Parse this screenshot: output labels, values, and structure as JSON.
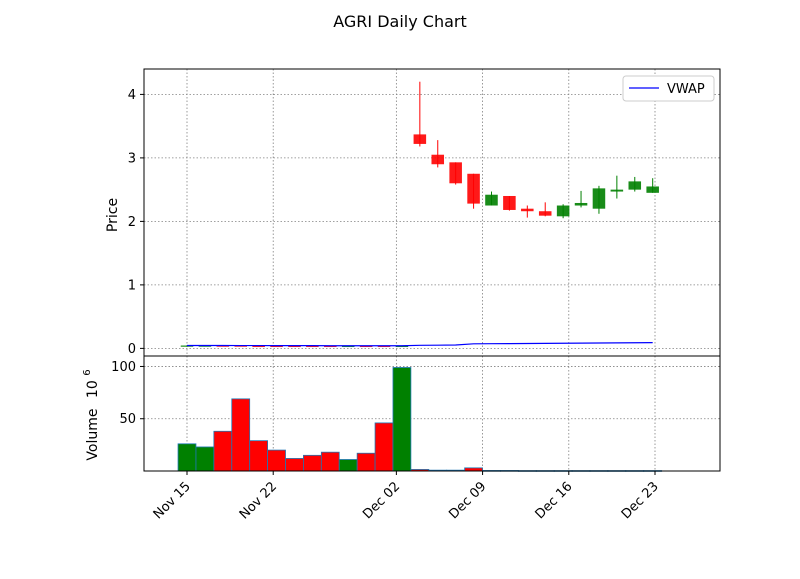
{
  "chart_data": {
    "type": "candlestick",
    "title": "AGRI Daily Chart",
    "colors": {
      "up": "#008000",
      "down": "#ff0000",
      "vwap": "#0000ff",
      "edge": "#1f77b4",
      "grid": "#808080"
    },
    "legend": {
      "entries": [
        "VWAP"
      ],
      "placement": "top-right"
    },
    "x_tick_labels": [
      "Nov 15",
      "Nov 22",
      "Dec 02",
      "Dec 09",
      "Dec 16",
      "Dec 23"
    ],
    "price_panel": {
      "ylabel": "Price",
      "ylim": [
        -0.12,
        4.4
      ],
      "yticks": [
        "0",
        "1",
        "2",
        "3",
        "4"
      ],
      "grid": true
    },
    "volume_panel": {
      "ylabel": "Volume",
      "ylabel_exponent": "10",
      "ylabel_exponent_power": "6",
      "ylim": [
        0,
        110
      ],
      "yticks": [
        "50",
        "100"
      ],
      "grid": true
    },
    "candles": [
      {
        "date": "2021-11-15",
        "open": 0.045,
        "high": 0.05,
        "low": 0.04,
        "close": 0.045,
        "volume": 26
      },
      {
        "date": "2021-11-16",
        "open": 0.04,
        "high": 0.045,
        "low": 0.035,
        "close": 0.045,
        "volume": 23
      },
      {
        "date": "2021-11-17",
        "open": 0.045,
        "high": 0.05,
        "low": 0.04,
        "close": 0.04,
        "volume": 38
      },
      {
        "date": "2021-11-18",
        "open": 0.045,
        "high": 0.05,
        "low": 0.04,
        "close": 0.04,
        "volume": 69
      },
      {
        "date": "2021-11-19",
        "open": 0.04,
        "high": 0.045,
        "low": 0.035,
        "close": 0.035,
        "volume": 29
      },
      {
        "date": "2021-11-22",
        "open": 0.04,
        "high": 0.045,
        "low": 0.035,
        "close": 0.035,
        "volume": 20
      },
      {
        "date": "2021-11-23",
        "open": 0.04,
        "high": 0.045,
        "low": 0.035,
        "close": 0.035,
        "volume": 12
      },
      {
        "date": "2021-11-24",
        "open": 0.04,
        "high": 0.045,
        "low": 0.035,
        "close": 0.035,
        "volume": 15
      },
      {
        "date": "2021-11-26",
        "open": 0.04,
        "high": 0.045,
        "low": 0.035,
        "close": 0.035,
        "volume": 18
      },
      {
        "date": "2021-11-29",
        "open": 0.035,
        "high": 0.045,
        "low": 0.03,
        "close": 0.04,
        "volume": 11
      },
      {
        "date": "2021-11-30",
        "open": 0.04,
        "high": 0.045,
        "low": 0.03,
        "close": 0.035,
        "volume": 17
      },
      {
        "date": "2021-12-01",
        "open": 0.04,
        "high": 0.045,
        "low": 0.03,
        "close": 0.035,
        "volume": 46
      },
      {
        "date": "2021-12-02",
        "open": 0.035,
        "high": 0.045,
        "low": 0.03,
        "close": 0.04,
        "volume": 99
      },
      {
        "date": "2021-12-03",
        "open": 3.37,
        "high": 4.2,
        "low": 3.18,
        "close": 3.22,
        "volume": 1.5
      },
      {
        "date": "2021-12-06",
        "open": 3.05,
        "high": 3.28,
        "low": 2.85,
        "close": 2.9,
        "volume": 0.8
      },
      {
        "date": "2021-12-07",
        "open": 2.93,
        "high": 2.93,
        "low": 2.58,
        "close": 2.6,
        "volume": 0.8
      },
      {
        "date": "2021-12-08",
        "open": 2.75,
        "high": 2.75,
        "low": 2.2,
        "close": 2.28,
        "volume": 3
      },
      {
        "date": "2021-12-09",
        "open": 2.25,
        "high": 2.47,
        "low": 2.25,
        "close": 2.42,
        "volume": 0.5
      },
      {
        "date": "2021-12-10",
        "open": 2.4,
        "high": 2.4,
        "low": 2.17,
        "close": 2.18,
        "volume": 0.5
      },
      {
        "date": "2021-12-13",
        "open": 2.2,
        "high": 2.25,
        "low": 2.06,
        "close": 2.16,
        "volume": 0.4
      },
      {
        "date": "2021-12-14",
        "open": 2.16,
        "high": 2.3,
        "low": 2.08,
        "close": 2.09,
        "volume": 0.4
      },
      {
        "date": "2021-12-15",
        "open": 2.08,
        "high": 2.27,
        "low": 2.05,
        "close": 2.25,
        "volume": 0.4
      },
      {
        "date": "2021-12-16",
        "open": 2.25,
        "high": 2.48,
        "low": 2.22,
        "close": 2.29,
        "volume": 0.4
      },
      {
        "date": "2021-12-17",
        "open": 2.2,
        "high": 2.56,
        "low": 2.12,
        "close": 2.52,
        "volume": 0.4
      },
      {
        "date": "2021-12-20",
        "open": 2.47,
        "high": 2.72,
        "low": 2.36,
        "close": 2.5,
        "volume": 0.4
      },
      {
        "date": "2021-12-21",
        "open": 2.5,
        "high": 2.7,
        "low": 2.47,
        "close": 2.63,
        "volume": 0.4
      },
      {
        "date": "2021-12-22",
        "open": 2.45,
        "high": 2.68,
        "low": 2.45,
        "close": 2.55,
        "volume": 0.4
      }
    ],
    "vwap": [
      0.045,
      0.045,
      0.045,
      0.044,
      0.044,
      0.043,
      0.043,
      0.043,
      0.042,
      0.042,
      0.042,
      0.041,
      0.041,
      0.048,
      0.05,
      0.053,
      0.072,
      0.074,
      0.075,
      0.077,
      0.079,
      0.081,
      0.083,
      0.085,
      0.087,
      0.089,
      0.091
    ]
  }
}
